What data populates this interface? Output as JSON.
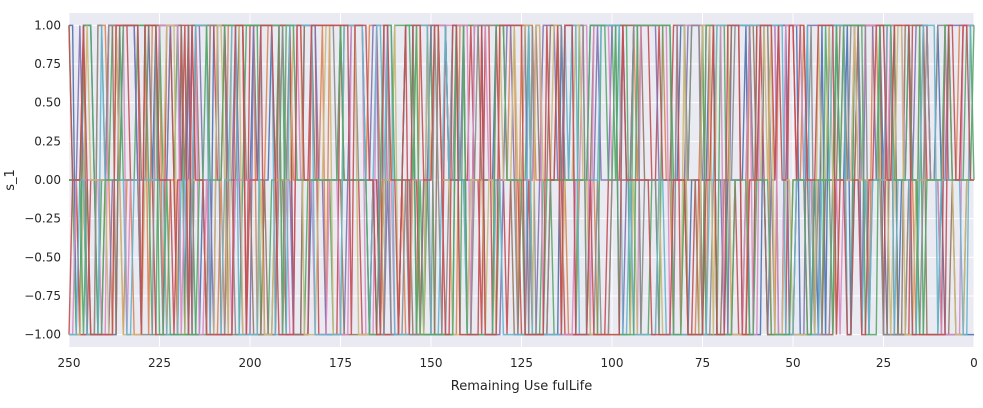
{
  "chart_data": {
    "type": "line",
    "title": "",
    "xlabel": "Remaining Use fulLife",
    "ylabel": "s_1",
    "xlim": [
      250,
      0
    ],
    "ylim": [
      -1.08,
      1.08
    ],
    "x_inverted": true,
    "grid": true,
    "legend": "none",
    "background": "#eaeaf2",
    "x_ticks": [
      250,
      225,
      200,
      175,
      150,
      125,
      100,
      75,
      50,
      25,
      0
    ],
    "x_tick_labels": [
      "250",
      "225",
      "200",
      "175",
      "150",
      "125",
      "100",
      "75",
      "50",
      "25",
      "0"
    ],
    "y_ticks": [
      1.0,
      0.75,
      0.5,
      0.25,
      0.0,
      -0.25,
      -0.5,
      -0.75,
      -1.0
    ],
    "y_tick_labels": [
      "1.00",
      "0.75",
      "0.50",
      "0.25",
      "0.00",
      "−0.25",
      "−0.50",
      "−0.75",
      "−1.00"
    ],
    "series_levels": [
      -1,
      0,
      1
    ],
    "series_count": 12,
    "points_per_series": 251,
    "series_colors": [
      "#4c72b0",
      "#dd8452",
      "#55a868",
      "#c44e52",
      "#8172b3",
      "#937860",
      "#da8bc3",
      "#8c8c8c",
      "#ccb974",
      "#64b5cd",
      "#55a868",
      "#c44e52"
    ]
  }
}
